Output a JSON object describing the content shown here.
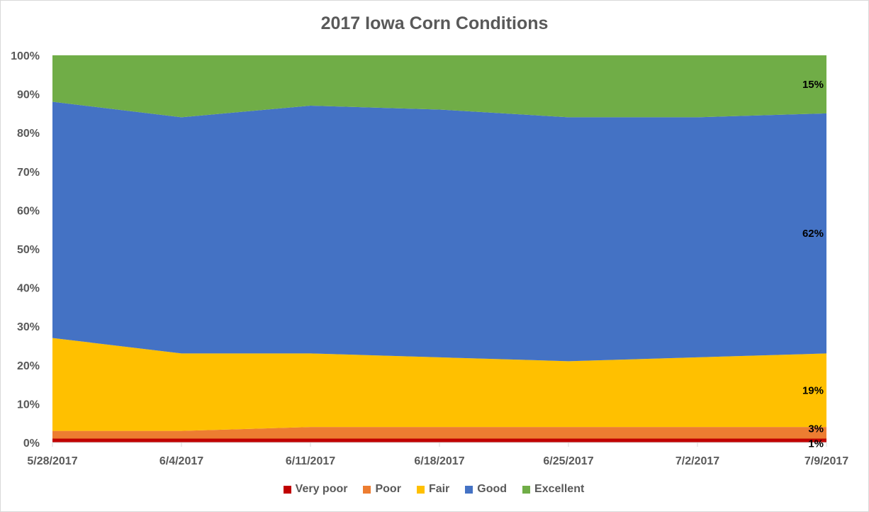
{
  "chart_data": {
    "type": "area",
    "stacked": true,
    "percent_stacked": true,
    "title": "2017 Iowa Corn Conditions",
    "categories": [
      "5/28/2017",
      "6/4/2017",
      "6/11/2017",
      "6/18/2017",
      "6/25/2017",
      "7/2/2017",
      "7/9/2017"
    ],
    "yticks": [
      "0%",
      "10%",
      "20%",
      "30%",
      "40%",
      "50%",
      "60%",
      "70%",
      "80%",
      "90%",
      "100%"
    ],
    "ylim": [
      0,
      100
    ],
    "grid": false,
    "legend_position": "bottom",
    "series": [
      {
        "name": "Very poor",
        "color": "#c00000",
        "values": [
          1,
          1,
          1,
          1,
          1,
          1,
          1
        ]
      },
      {
        "name": "Poor",
        "color": "#ed7d31",
        "values": [
          2,
          2,
          3,
          3,
          3,
          3,
          3
        ]
      },
      {
        "name": "Fair",
        "color": "#ffc000",
        "values": [
          24,
          20,
          19,
          18,
          17,
          18,
          19
        ]
      },
      {
        "name": "Good",
        "color": "#4472c4",
        "values": [
          61,
          61,
          64,
          64,
          63,
          62,
          62
        ]
      },
      {
        "name": "Excellent",
        "color": "#70ad47",
        "values": [
          12,
          16,
          13,
          14,
          16,
          16,
          15
        ]
      }
    ],
    "data_labels": [
      {
        "series": "Excellent",
        "text": "15%"
      },
      {
        "series": "Good",
        "text": "62%"
      },
      {
        "series": "Fair",
        "text": "19%"
      },
      {
        "series": "Poor",
        "text": "3%"
      },
      {
        "series": "Very poor",
        "text": "1%"
      }
    ]
  }
}
